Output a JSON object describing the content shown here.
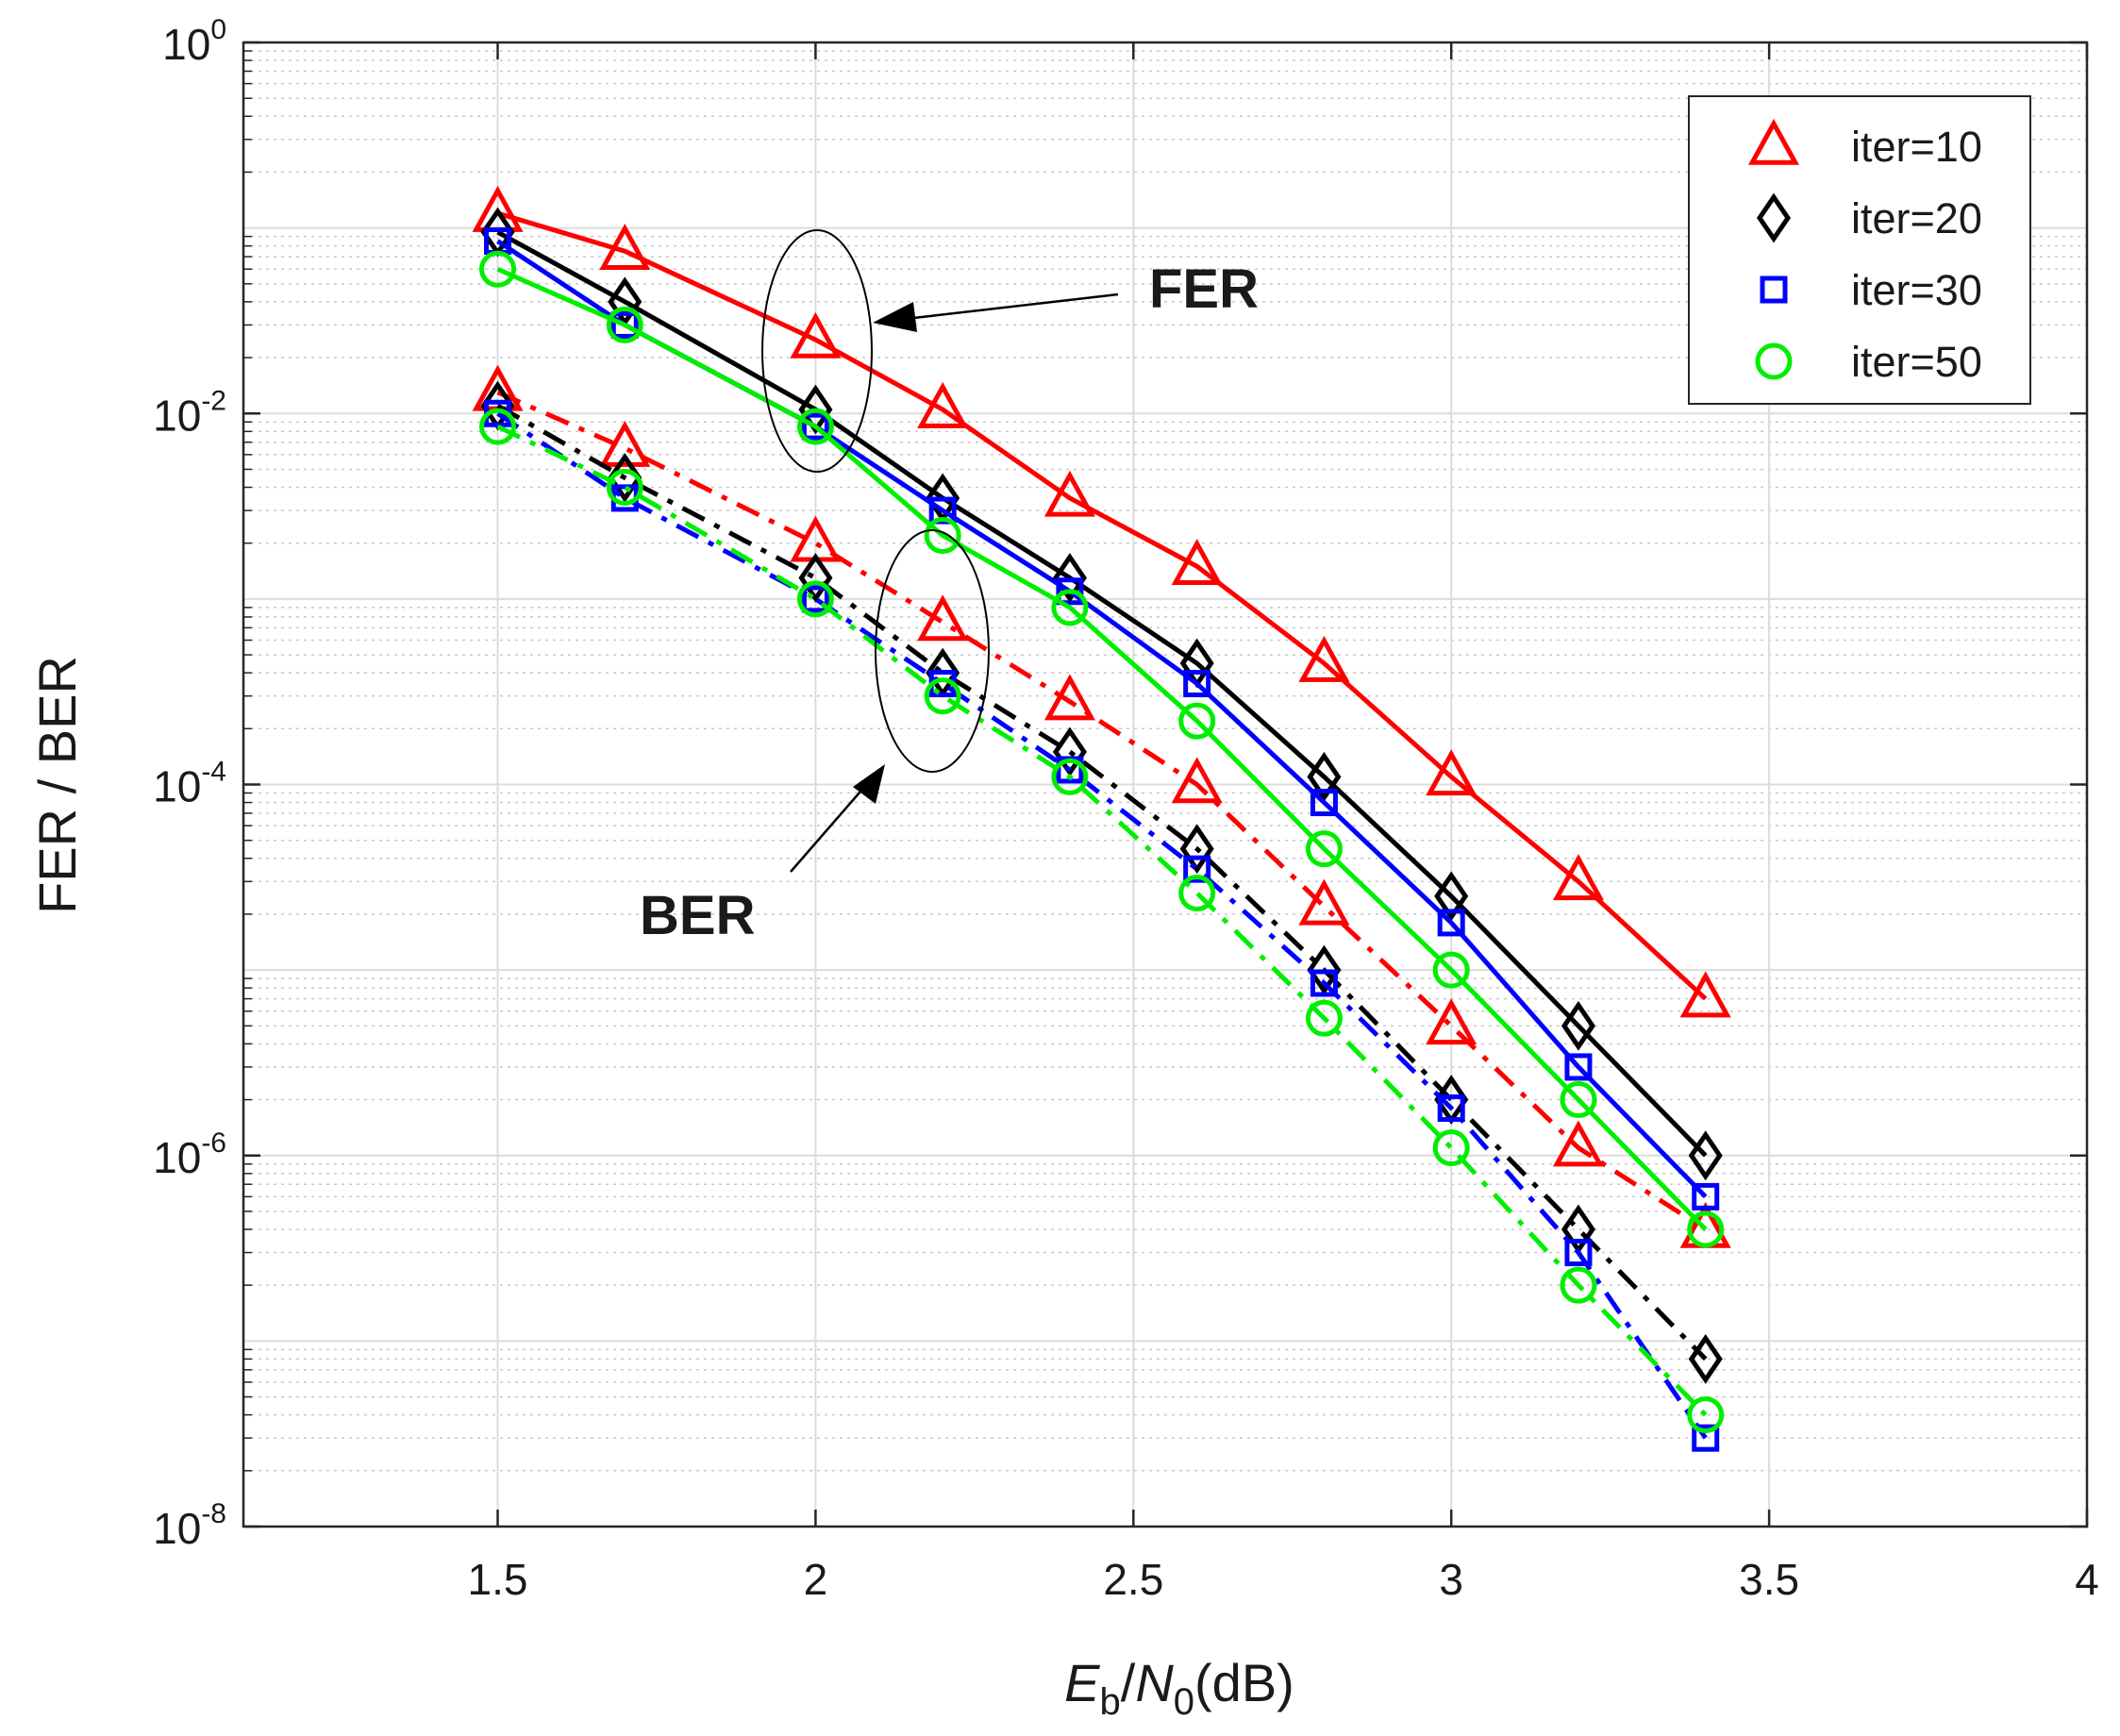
{
  "chart_data": {
    "type": "line",
    "title": "",
    "xlabel": {
      "main": "E",
      "sub1": "b",
      "slash": "/",
      "main2": "N",
      "sub2": "0",
      "unit": "(dB)"
    },
    "ylabel": "FER / BER",
    "xlim": [
      1.1,
      4.0
    ],
    "ylim": [
      1e-08,
      1
    ],
    "y_scale": "log",
    "grid": true,
    "legend_position": "top-right",
    "x_ticks": [
      "1.5",
      "2",
      "2.5",
      "3",
      "3.5",
      "4"
    ],
    "x_tick_values": [
      1.5,
      2.0,
      2.5,
      3.0,
      3.5,
      4.0
    ],
    "y_ticks": [
      {
        "base": "10",
        "exp": "0",
        "value": 1
      },
      {
        "base": "10",
        "exp": "-2",
        "value": 0.01
      },
      {
        "base": "10",
        "exp": "-4",
        "value": 0.0001
      },
      {
        "base": "10",
        "exp": "-6",
        "value": 1e-06
      },
      {
        "base": "10",
        "exp": "-8",
        "value": 1e-08
      }
    ],
    "x": [
      1.5,
      1.7,
      2.0,
      2.2,
      2.4,
      2.6,
      2.8,
      3.0,
      3.2,
      3.4
    ],
    "series": [
      {
        "name": "iter=10",
        "metric": "FER",
        "marker": "triangle",
        "color": "#ff0000",
        "line": "solid",
        "values": [
          0.12,
          0.075,
          0.025,
          0.0105,
          0.0035,
          0.0015,
          0.00045,
          0.00011,
          3e-05,
          7e-06
        ]
      },
      {
        "name": "iter=20",
        "metric": "FER",
        "marker": "diamond",
        "color": "#000000",
        "line": "solid",
        "values": [
          0.095,
          0.04,
          0.0105,
          0.0035,
          0.0013,
          0.00045,
          0.00011,
          2.5e-05,
          5e-06,
          1e-06
        ]
      },
      {
        "name": "iter=30",
        "metric": "FER",
        "marker": "square",
        "color": "#0000ff",
        "line": "solid",
        "values": [
          0.085,
          0.03,
          0.0085,
          0.003,
          0.0011,
          0.00035,
          8e-05,
          1.8e-05,
          3e-06,
          6e-07
        ]
      },
      {
        "name": "iter=50",
        "metric": "FER",
        "marker": "circle",
        "color": "#00ee00",
        "line": "solid",
        "values": [
          0.06,
          0.03,
          0.0085,
          0.0022,
          0.0009,
          0.00022,
          4.5e-05,
          1e-05,
          2e-06,
          4e-07
        ]
      },
      {
        "name": "iter=10",
        "metric": "BER",
        "marker": "triangle",
        "color": "#ff0000",
        "line": "dashdot",
        "values": [
          0.013,
          0.0065,
          0.002,
          0.00075,
          0.00028,
          0.0001,
          2.2e-05,
          5e-06,
          1.1e-06,
          4e-07
        ]
      },
      {
        "name": "iter=20",
        "metric": "BER",
        "marker": "diamond",
        "color": "#000000",
        "line": "dashdot",
        "values": [
          0.011,
          0.0045,
          0.0013,
          0.0004,
          0.00015,
          4.5e-05,
          1e-05,
          2e-06,
          4e-07,
          8e-08
        ]
      },
      {
        "name": "iter=30",
        "metric": "BER",
        "marker": "square",
        "color": "#0000ff",
        "line": "dashdot",
        "values": [
          0.01,
          0.0035,
          0.001,
          0.00035,
          0.00012,
          3.5e-05,
          8.5e-06,
          1.8e-06,
          3e-07,
          3e-08
        ]
      },
      {
        "name": "iter=50",
        "metric": "BER",
        "marker": "circle",
        "color": "#00ee00",
        "line": "dashdot",
        "values": [
          0.0085,
          0.004,
          0.001,
          0.0003,
          0.00011,
          2.6e-05,
          5.5e-06,
          1.1e-06,
          2e-07,
          4e-08
        ]
      }
    ],
    "legend": [
      {
        "label": "iter=10",
        "marker": "triangle",
        "color": "#ff0000"
      },
      {
        "label": "iter=20",
        "marker": "diamond",
        "color": "#000000"
      },
      {
        "label": "iter=30",
        "marker": "square",
        "color": "#0000ff"
      },
      {
        "label": "iter=50",
        "marker": "circle",
        "color": "#00ee00"
      }
    ],
    "annotations": [
      {
        "text": "FER",
        "target_x": 2.0,
        "target_y": 0.015
      },
      {
        "text": "BER",
        "target_x": 2.2,
        "target_y": 0.0004
      }
    ]
  }
}
